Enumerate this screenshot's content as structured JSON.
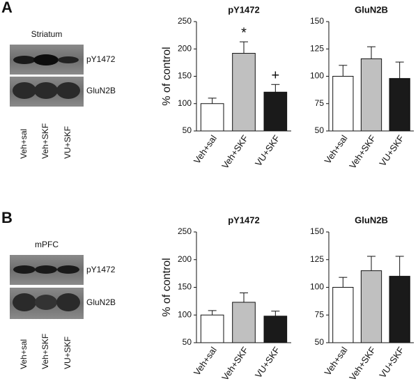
{
  "panels": [
    {
      "label": "A",
      "blot": {
        "title": "Striatum",
        "bands": [
          "pY1472",
          "GluN2B"
        ],
        "lanes": [
          "Veh+sal",
          "Veh+SKF",
          "VU+SKF"
        ]
      }
    },
    {
      "label": "B",
      "blot": {
        "title": "mPFC",
        "bands": [
          "pY1472",
          "GluN2B"
        ],
        "lanes": [
          "Veh+sal",
          "Veh+SKF",
          "VU+SKF"
        ]
      }
    }
  ],
  "chart_data": [
    {
      "type": "bar",
      "title": "pY1472",
      "ylabel": "% of control",
      "categories": [
        "Veh+sal",
        "Veh+SKF",
        "VU+SKF"
      ],
      "values": [
        100,
        192,
        121
      ],
      "errors": [
        10,
        21,
        14
      ],
      "colors": [
        "#ffffff",
        "#c0c0c0",
        "#1a1a1a"
      ],
      "annotations": [
        null,
        "*",
        "+"
      ],
      "ylim": [
        50,
        250
      ],
      "yticks": [
        50,
        100,
        150,
        200,
        250
      ]
    },
    {
      "type": "bar",
      "title": "GluN2B",
      "categories": [
        "Veh+sal",
        "Veh+SKF",
        "VU+SKF"
      ],
      "values": [
        100,
        116,
        98
      ],
      "errors": [
        10,
        11,
        15
      ],
      "colors": [
        "#ffffff",
        "#c0c0c0",
        "#1a1a1a"
      ],
      "ylim": [
        50,
        150
      ],
      "yticks": [
        50,
        75,
        100,
        125,
        150
      ]
    },
    {
      "type": "bar",
      "title": "pY1472",
      "ylabel": "% of control",
      "categories": [
        "Veh+sal",
        "Veh+SKF",
        "VU+SKF"
      ],
      "values": [
        100,
        123,
        98
      ],
      "errors": [
        8,
        17,
        9
      ],
      "colors": [
        "#ffffff",
        "#c0c0c0",
        "#1a1a1a"
      ],
      "ylim": [
        50,
        250
      ],
      "yticks": [
        50,
        100,
        150,
        200,
        250
      ]
    },
    {
      "type": "bar",
      "title": "GluN2B",
      "categories": [
        "Veh+sal",
        "Veh+SKF",
        "VU+SKF"
      ],
      "values": [
        100,
        115,
        110
      ],
      "errors": [
        9,
        13,
        18
      ],
      "colors": [
        "#ffffff",
        "#c0c0c0",
        "#1a1a1a"
      ],
      "ylim": [
        50,
        150
      ],
      "yticks": [
        50,
        75,
        100,
        125,
        150
      ]
    }
  ]
}
